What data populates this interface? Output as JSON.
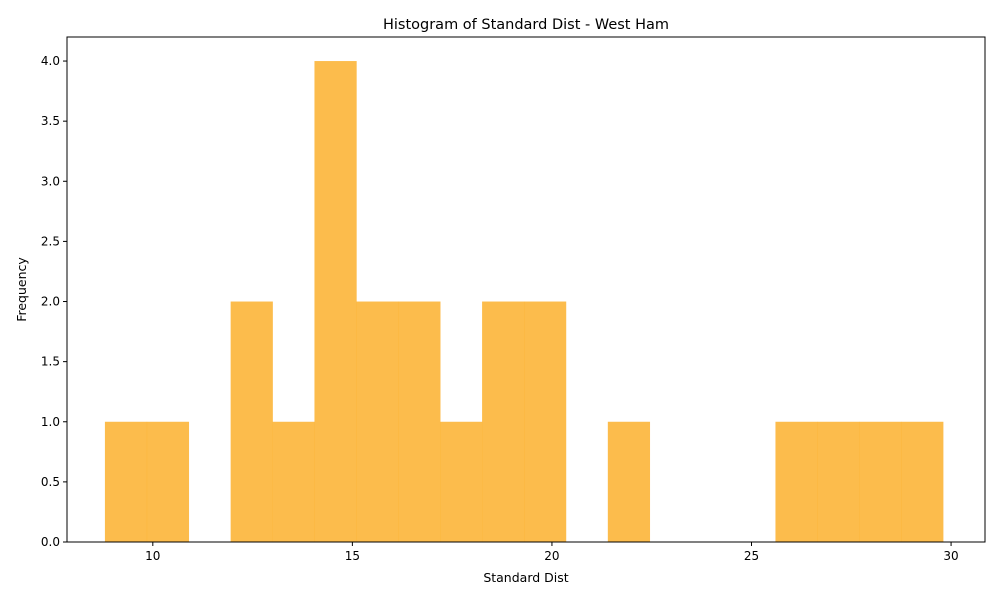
{
  "chart_data": {
    "type": "bar",
    "title": "Histogram of Standard Dist - West Ham",
    "xlabel": "Standard Dist",
    "ylabel": "Frequency",
    "xlim": [
      7.85,
      30.85
    ],
    "ylim": [
      0,
      4.2
    ],
    "x_ticks": [
      10,
      15,
      20,
      25,
      30
    ],
    "y_ticks": [
      0.0,
      0.5,
      1.0,
      1.5,
      2.0,
      2.5,
      3.0,
      3.5,
      4.0
    ],
    "bin_edges": [
      8.8,
      9.85,
      10.9,
      11.95,
      13.0,
      14.05,
      15.1,
      16.15,
      17.2,
      18.25,
      19.3,
      20.35,
      21.4,
      22.45,
      23.5,
      24.55,
      25.6,
      26.65,
      27.7,
      28.75,
      29.8
    ],
    "values": [
      1,
      1,
      0,
      2,
      1,
      4,
      2,
      2,
      1,
      2,
      2,
      0,
      1,
      0,
      0,
      0,
      1,
      1,
      1,
      1
    ],
    "bar_color": "#fbb02d",
    "bar_opacity": 0.85,
    "grid": false,
    "legend": false
  }
}
